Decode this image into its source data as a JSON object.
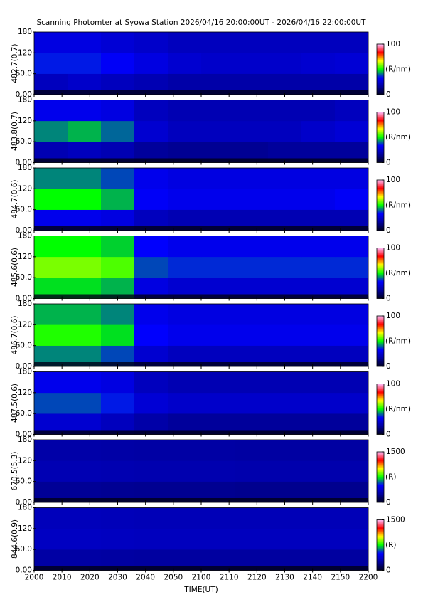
{
  "title": "Scanning Photomter at Syowa Station 2026/04/16 20:00:00UT - 2026/04/16 22:00:00UT",
  "xlabel": "TIME(UT)",
  "xlim": [
    1200,
    1320
  ],
  "xticks": [
    {
      "value": 1200,
      "label": "2000"
    },
    {
      "value": 1210,
      "label": "2010"
    },
    {
      "value": 1220,
      "label": "2020"
    },
    {
      "value": 1230,
      "label": "2030"
    },
    {
      "value": 1240,
      "label": "2040"
    },
    {
      "value": 1250,
      "label": "2050"
    },
    {
      "value": 1260,
      "label": "2100"
    },
    {
      "value": 1270,
      "label": "2110"
    },
    {
      "value": 1280,
      "label": "2120"
    },
    {
      "value": 1290,
      "label": "2130"
    },
    {
      "value": 1300,
      "label": "2140"
    },
    {
      "value": 1310,
      "label": "2150"
    },
    {
      "value": 1320,
      "label": "2200"
    }
  ],
  "ylim": [
    0,
    180
  ],
  "yticks": [
    {
      "value": 0,
      "label": "0.00"
    },
    {
      "value": 60,
      "label": "60.0"
    },
    120,
    180
  ],
  "time_bins": [
    1200,
    1212,
    1224,
    1236,
    1248,
    1260,
    1272,
    1284,
    1296,
    1308,
    1320
  ],
  "elevation_bins": [
    0,
    60,
    120,
    180
  ],
  "colormap": [
    "#000020",
    "#0000a0",
    "#0000ff",
    "#00ff00",
    "#ffff00",
    "#ff0000",
    "#ffc0ff"
  ],
  "chart_data": [
    {
      "type": "heatmap",
      "ylabel": "482.7(0.7)",
      "clim": [
        0,
        100
      ],
      "cticks": [
        0,
        100
      ],
      "cunit": "(R/nm)",
      "z": [
        [
          22,
          24,
          22,
          20,
          18,
          18,
          18,
          18,
          18,
          18
        ],
        [
          35,
          35,
          32,
          28,
          25,
          24,
          24,
          24,
          25,
          26
        ],
        [
          28,
          28,
          26,
          24,
          22,
          22,
          22,
          22,
          22,
          22
        ]
      ]
    },
    {
      "type": "heatmap",
      "ylabel": "483.8(0.7)",
      "clim": [
        0,
        100
      ],
      "cticks": [
        0,
        100
      ],
      "cunit": "(R/nm)",
      "z": [
        [
          20,
          22,
          20,
          16,
          15,
          15,
          15,
          16,
          16,
          16
        ],
        [
          42,
          45,
          40,
          25,
          22,
          22,
          22,
          22,
          24,
          26
        ],
        [
          30,
          30,
          28,
          22,
          20,
          20,
          20,
          20,
          20,
          22
        ]
      ]
    },
    {
      "type": "heatmap",
      "ylabel": "484.7(0.6)",
      "clim": [
        0,
        100
      ],
      "cticks": [
        0,
        100
      ],
      "cunit": "(R/nm)",
      "z": [
        [
          30,
          30,
          28,
          22,
          20,
          20,
          20,
          20,
          20,
          20
        ],
        [
          50,
          50,
          45,
          32,
          30,
          30,
          30,
          30,
          30,
          32
        ],
        [
          42,
          42,
          38,
          30,
          28,
          28,
          28,
          28,
          28,
          28
        ]
      ]
    },
    {
      "type": "heatmap",
      "ylabel": "485.6(0.6)",
      "clim": [
        0,
        100
      ],
      "cticks": [
        0,
        100
      ],
      "cunit": "(R/nm)",
      "z": [
        [
          48,
          48,
          45,
          28,
          25,
          25,
          25,
          25,
          25,
          25
        ],
        [
          58,
          58,
          55,
          38,
          36,
          36,
          36,
          36,
          36,
          36
        ],
        [
          50,
          50,
          47,
          33,
          30,
          30,
          30,
          30,
          30,
          30
        ]
      ]
    },
    {
      "type": "heatmap",
      "ylabel": "486.7(0.6)",
      "clim": [
        0,
        100
      ],
      "cticks": [
        0,
        100
      ],
      "cunit": "(R/nm)",
      "z": [
        [
          42,
          42,
          38,
          25,
          22,
          22,
          22,
          22,
          22,
          22
        ],
        [
          52,
          52,
          48,
          33,
          30,
          30,
          30,
          30,
          30,
          30
        ],
        [
          45,
          45,
          42,
          30,
          28,
          28,
          28,
          28,
          28,
          28
        ]
      ]
    },
    {
      "type": "heatmap",
      "ylabel": "487.5(0.6)",
      "clim": [
        0,
        100
      ],
      "cticks": [
        0,
        100
      ],
      "cunit": "(R/nm)",
      "z": [
        [
          25,
          25,
          22,
          18,
          16,
          16,
          16,
          16,
          16,
          16
        ],
        [
          38,
          38,
          35,
          26,
          24,
          24,
          24,
          24,
          24,
          24
        ],
        [
          30,
          30,
          28,
          22,
          20,
          20,
          20,
          20,
          20,
          20
        ]
      ]
    },
    {
      "type": "heatmap",
      "ylabel": "670.5(5.3)",
      "clim": [
        0,
        1500
      ],
      "cticks": [
        0,
        1500
      ],
      "cunit": "(R)",
      "z": [
        [
          230,
          230,
          225,
          220,
          220,
          220,
          215,
          215,
          215,
          215
        ],
        [
          300,
          300,
          295,
          290,
          290,
          290,
          285,
          285,
          285,
          285
        ],
        [
          270,
          270,
          265,
          260,
          260,
          260,
          255,
          255,
          255,
          255
        ]
      ]
    },
    {
      "type": "heatmap",
      "ylabel": "844.6(0.9)",
      "clim": [
        0,
        1500
      ],
      "cticks": [
        0,
        1500
      ],
      "cunit": "(R)",
      "z": [
        [
          260,
          260,
          255,
          250,
          250,
          250,
          250,
          250,
          250,
          250
        ],
        [
          340,
          340,
          335,
          330,
          330,
          330,
          330,
          330,
          330,
          330
        ],
        [
          320,
          320,
          315,
          310,
          310,
          310,
          310,
          310,
          310,
          310
        ]
      ]
    }
  ]
}
